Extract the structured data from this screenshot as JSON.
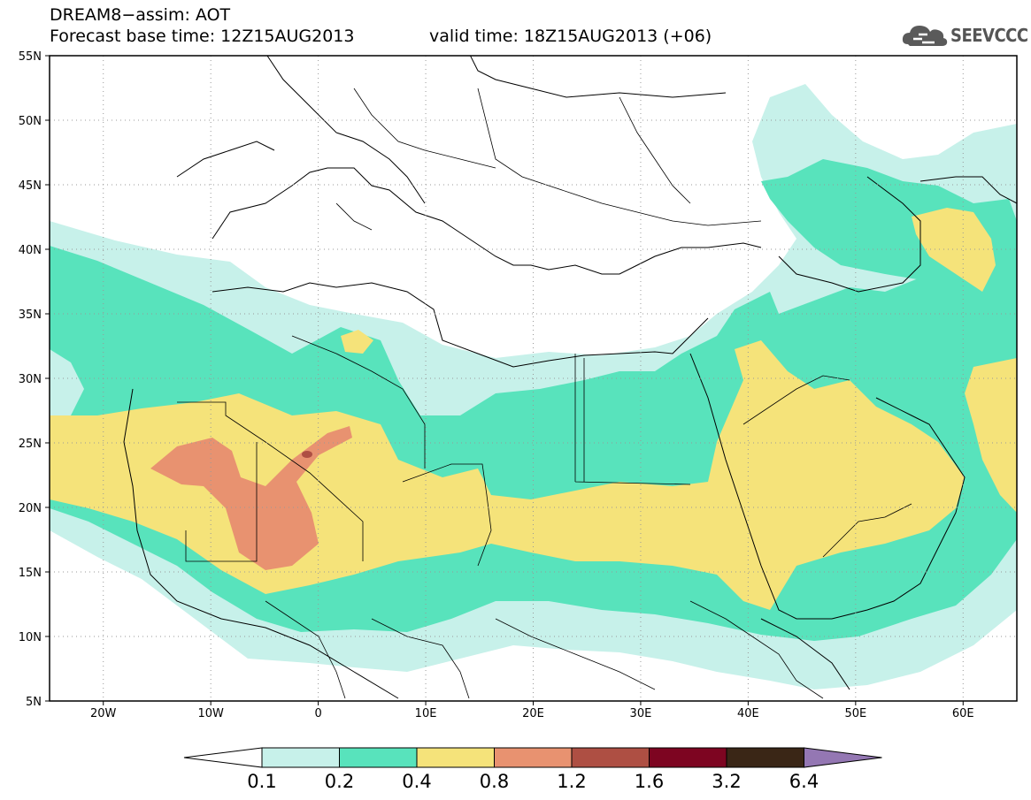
{
  "header": {
    "title_line1": "DREAM8−assim: AOT",
    "title_line2": "Forecast base time: 12Z15AUG2013",
    "valid_time": "valid time: 18Z15AUG2013 (+06)",
    "logo_text": "SEEVCCC"
  },
  "map": {
    "lon_range": [
      -25,
      65
    ],
    "lat_range": [
      5,
      55
    ],
    "lat_labels": [
      "55N",
      "50N",
      "45N",
      "40N",
      "35N",
      "30N",
      "25N",
      "20N",
      "15N",
      "10N",
      "5N"
    ],
    "lon_labels": [
      "20W",
      "10W",
      "0",
      "10E",
      "20E",
      "30E",
      "40E",
      "50E",
      "60E"
    ],
    "gridlines": "dotted"
  },
  "colorbar": {
    "labels": [
      "0.1",
      "0.2",
      "0.4",
      "0.8",
      "1.2",
      "1.6",
      "3.2",
      "6.4"
    ],
    "colors": [
      "#ffffff",
      "#c7f1ea",
      "#58e3bc",
      "#f5e37a",
      "#e89270",
      "#ae4f43",
      "#7d0521",
      "#3a2616",
      "#9477b3"
    ]
  },
  "colors": {
    "level_0.1": "#c7f1ea",
    "level_0.2": "#58e3bc",
    "level_0.4": "#f5e37a",
    "level_0.8": "#e89270",
    "level_1.2": "#ae4f43"
  }
}
